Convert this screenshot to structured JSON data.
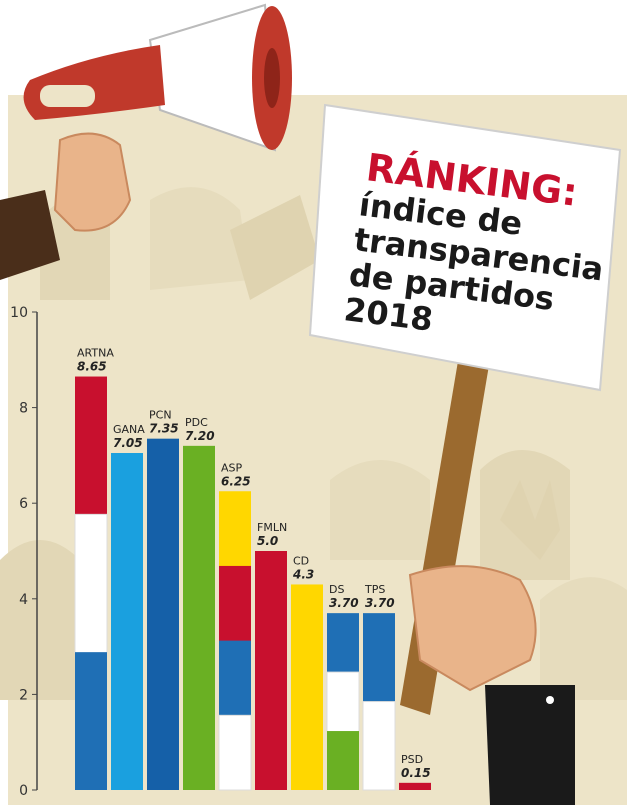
{
  "chart_data": {
    "type": "bar",
    "title_highlight": "RÁNKING:",
    "title_lines": [
      "índice de",
      "transparencia",
      "de partidos",
      "2018"
    ],
    "xlabel": "",
    "ylabel": "",
    "ylim": [
      0,
      10
    ],
    "yticks": [
      0,
      2,
      4,
      6,
      8,
      10
    ],
    "grid": false,
    "categories": [
      "ARTNA",
      "GANA",
      "PCN",
      "PDC",
      "ASP",
      "FMLN",
      "CD",
      "DS",
      "TPS",
      "PSD"
    ],
    "values": [
      8.65,
      7.05,
      7.35,
      7.2,
      6.25,
      5.0,
      4.3,
      3.7,
      3.7,
      0.15
    ],
    "value_labels": [
      "8.65",
      "7.05",
      "7.35",
      "7.20",
      "6.25",
      "5.0",
      "4.3",
      "3.70",
      "3.70",
      "0.15"
    ],
    "bar_colors": [
      [
        "#c8102e",
        "#ffffff",
        "#1f6fb5"
      ],
      [
        "#1aa0df"
      ],
      [
        "#1560a8"
      ],
      [
        "#6ab023"
      ],
      [
        "#ffd700",
        "#c8102e",
        "#1f6fb5",
        "#ffffff"
      ],
      [
        "#c8102e"
      ],
      [
        "#ffd700"
      ],
      [
        "#1f6fb5",
        "#ffffff",
        "#6ab023"
      ],
      [
        "#1f6fb5",
        "#ffffff"
      ],
      [
        "#c8102e"
      ]
    ]
  },
  "colors": {
    "sign_red": "#c8102e",
    "sign_text": "#1a1a1a",
    "background_beige": "#ede4c8",
    "megaphone_red": "#c0392b"
  }
}
